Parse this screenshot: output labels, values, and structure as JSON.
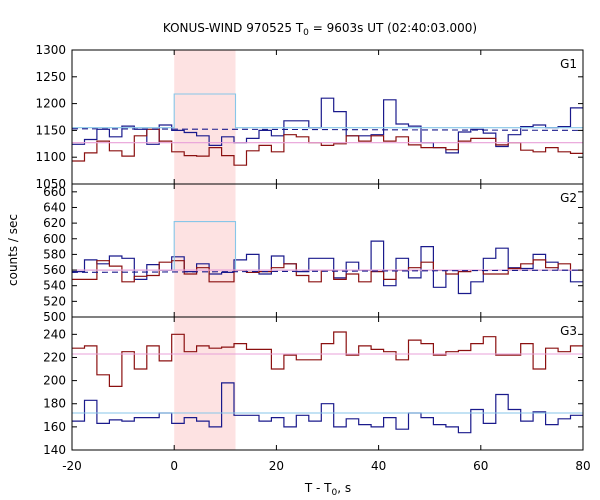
{
  "chart_data": {
    "type": "line",
    "title": "KONUS-WIND 970525 T",
    "title_sub": "0",
    "title_rest": " = 9603s UT (02:40:03.000)",
    "xlabel": "T - T",
    "xlabel_sub": "0",
    "xlabel_rest": ", s",
    "ylabel": "counts / sec",
    "xlim": [
      -20,
      80
    ],
    "x_ticks": [
      "-20",
      "0",
      "20",
      "40",
      "60",
      "80"
    ],
    "highlight_interval": [
      0,
      12
    ],
    "colors": {
      "g_blue": "#1a1a8c",
      "g_red": "#8b1010",
      "fit_blue": "#87c6e8",
      "fit_pink": "#e8a0d8",
      "dash": "#1a1a8c",
      "highlight": "#fde2e2"
    },
    "panels": [
      {
        "label": "G1",
        "ylim": [
          1050,
          1300
        ],
        "y_ticks": [
          1050,
          1100,
          1150,
          1200,
          1250,
          1300
        ],
        "series": [
          {
            "color_key": "g_blue",
            "values": [
              1124,
              1133,
              1152,
              1138,
              1158,
              1152,
              1124,
              1160,
              1150,
              1146,
              1140,
              1122,
              1138,
              1127,
              1135,
              1150,
              1140,
              1168,
              1168,
              1155,
              1210,
              1185,
              1140,
              1140,
              1142,
              1207,
              1162,
              1158,
              1127,
              1118,
              1108,
              1147,
              1152,
              1145,
              1120,
              1142,
              1157,
              1160,
              1155,
              1157,
              1192
            ]
          },
          {
            "color_key": "g_red",
            "values": [
              1093,
              1108,
              1130,
              1112,
              1102,
              1140,
              1152,
              1130,
              1110,
              1103,
              1102,
              1118,
              1103,
              1085,
              1112,
              1122,
              1110,
              1142,
              1138,
              1127,
              1122,
              1125,
              1140,
              1130,
              1140,
              1130,
              1138,
              1123,
              1118,
              1118,
              1114,
              1130,
              1135,
              1135,
              1123,
              1127,
              1113,
              1110,
              1118,
              1110,
              1107
            ]
          },
          {
            "color_key": "fit_blue",
            "step": [
              [
                -20,
                1155
              ],
              [
                0,
                1155
              ],
              [
                0,
                1218
              ],
              [
                12,
                1218
              ],
              [
                12,
                1155
              ],
              [
                80,
                1155
              ]
            ]
          },
          {
            "color_key": "fit_pink",
            "line": [
              [
                -20,
                1127
              ],
              [
                80,
                1127
              ]
            ]
          },
          {
            "color_key": "dash",
            "dashed": true,
            "line": [
              [
                -20,
                1153
              ],
              [
                80,
                1150
              ]
            ]
          }
        ]
      },
      {
        "label": "G2",
        "ylim": [
          500,
          670
        ],
        "y_ticks": [
          500,
          520,
          540,
          560,
          580,
          600,
          620,
          640,
          660
        ],
        "series": [
          {
            "color_key": "g_blue",
            "values": [
              558,
              573,
              568,
              578,
              575,
              548,
              567,
              560,
              577,
              558,
              568,
              555,
              557,
              573,
              580,
              555,
              578,
              568,
              558,
              575,
              575,
              550,
              570,
              560,
              597,
              540,
              575,
              550,
              590,
              538,
              560,
              530,
              545,
              575,
              588,
              563,
              562,
              580,
              570,
              560,
              545
            ]
          },
          {
            "color_key": "g_red",
            "values": [
              548,
              548,
              572,
              565,
              545,
              552,
              553,
              570,
              572,
              555,
              563,
              545,
              545,
              560,
              557,
              558,
              563,
              568,
              553,
              545,
              560,
              548,
              555,
              545,
              558,
              548,
              560,
              563,
              570,
              560,
              555,
              558,
              560,
              555,
              555,
              562,
              568,
              573,
              563,
              568,
              560
            ]
          },
          {
            "color_key": "fit_blue",
            "step": [
              [
                -20,
                560
              ],
              [
                0,
                560
              ],
              [
                0,
                622
              ],
              [
                12,
                622
              ],
              [
                12,
                560
              ],
              [
                80,
                560
              ]
            ]
          },
          {
            "color_key": "fit_pink",
            "line": [
              [
                -20,
                560
              ],
              [
                80,
                560
              ]
            ]
          },
          {
            "color_key": "dash",
            "dashed": true,
            "line": [
              [
                -20,
                557
              ],
              [
                80,
                560
              ]
            ]
          }
        ]
      },
      {
        "label": "G3",
        "ylim": [
          140,
          255
        ],
        "y_ticks": [
          140,
          160,
          180,
          200,
          220,
          240
        ],
        "series": [
          {
            "color_key": "g_blue",
            "values": [
              165,
              183,
              163,
              166,
              165,
              168,
              168,
              172,
              163,
              168,
              165,
              160,
              198,
              170,
              170,
              165,
              168,
              160,
              170,
              165,
              180,
              160,
              167,
              162,
              160,
              168,
              158,
              172,
              168,
              162,
              160,
              155,
              175,
              163,
              188,
              175,
              165,
              173,
              162,
              167,
              170
            ]
          },
          {
            "color_key": "g_red",
            "values": [
              228,
              230,
              205,
              195,
              225,
              210,
              230,
              217,
              240,
              225,
              230,
              228,
              229,
              232,
              227,
              227,
              210,
              222,
              218,
              218,
              232,
              242,
              222,
              230,
              227,
              225,
              218,
              235,
              232,
              222,
              225,
              226,
              232,
              238,
              222,
              222,
              232,
              210,
              228,
              225,
              230
            ]
          },
          {
            "color_key": "fit_blue",
            "line": [
              [
                -20,
                172
              ],
              [
                80,
                172
              ]
            ]
          },
          {
            "color_key": "fit_pink",
            "line": [
              [
                -20,
                223
              ],
              [
                80,
                223
              ]
            ]
          }
        ]
      }
    ]
  }
}
